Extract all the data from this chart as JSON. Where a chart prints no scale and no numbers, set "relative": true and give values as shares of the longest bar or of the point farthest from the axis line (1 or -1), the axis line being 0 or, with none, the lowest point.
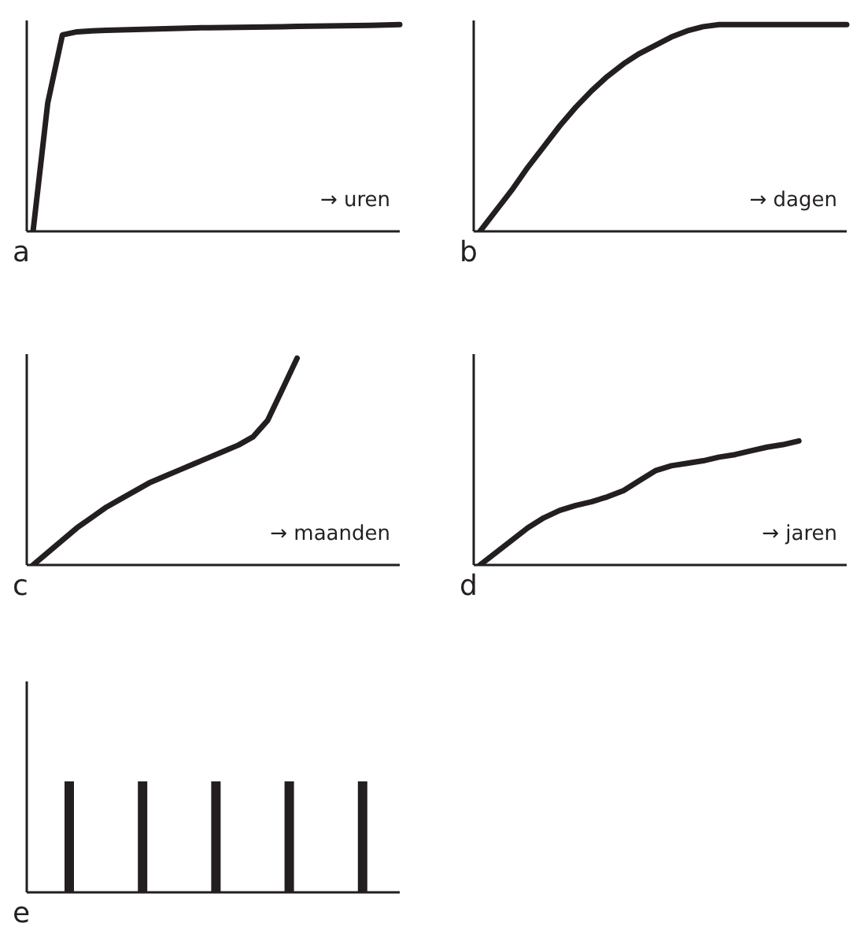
{
  "chart_data": [
    {
      "type": "line",
      "title": "a",
      "xlabel": "→ uren",
      "relative": true,
      "color": "#231f20",
      "categories": [
        null,
        null,
        null,
        null,
        null,
        null,
        null,
        null,
        null,
        null,
        null,
        null,
        null,
        null,
        null,
        null,
        null,
        null,
        null,
        null,
        null,
        null,
        null,
        null,
        null,
        null
      ],
      "values": [
        0,
        0.62,
        0.95,
        0.965,
        0.97,
        0.972,
        0.974,
        0.976,
        0.978,
        0.98,
        0.982,
        0.984,
        0.985,
        0.986,
        0.987,
        0.988,
        0.989,
        0.99,
        0.991,
        0.992,
        0.993,
        0.994,
        0.995,
        0.996,
        0.998,
        1
      ]
    },
    {
      "type": "line",
      "title": "b",
      "xlabel": "→ dagen",
      "relative": true,
      "color": "#231f20",
      "categories": [
        null,
        null,
        null,
        null,
        null,
        null,
        null,
        null,
        null,
        null,
        null,
        null,
        null,
        null,
        null,
        null,
        null,
        null,
        null,
        null,
        null,
        null,
        null,
        null
      ],
      "values": [
        0,
        0.1,
        0.2,
        0.31,
        0.41,
        0.51,
        0.6,
        0.68,
        0.75,
        0.81,
        0.86,
        0.9,
        0.94,
        0.97,
        0.99,
        1,
        1,
        1,
        1,
        1,
        1,
        1,
        1,
        1
      ]
    },
    {
      "type": "line",
      "title": "c",
      "xlabel": "→ maanden",
      "relative": true,
      "color": "#231f20",
      "categories": [
        null,
        null,
        null,
        null,
        null,
        null,
        null,
        null,
        null,
        null,
        null,
        null,
        null,
        null,
        null,
        null,
        null,
        null,
        null,
        null,
        null,
        null,
        null,
        null,
        null,
        null
      ],
      "values": [
        0,
        0.06,
        0.12,
        0.18,
        0.23,
        0.28,
        0.32,
        0.36,
        0.4,
        0.43,
        0.46,
        0.49,
        0.52,
        0.55,
        0.58,
        0.62,
        0.7,
        0.85,
        1,
        null,
        null,
        null,
        null,
        null,
        null,
        null
      ]
    },
    {
      "type": "line",
      "title": "d",
      "xlabel": "→ jaren",
      "relative": true,
      "color": "#231f20",
      "categories": [
        null,
        null,
        null,
        null,
        null,
        null,
        null,
        null,
        null,
        null,
        null,
        null,
        null,
        null,
        null,
        null,
        null,
        null,
        null,
        null,
        null,
        null,
        null,
        null
      ],
      "values": [
        0,
        0.1,
        0.2,
        0.3,
        0.38,
        0.44,
        0.48,
        0.51,
        0.55,
        0.6,
        0.68,
        0.76,
        0.8,
        0.82,
        0.84,
        0.87,
        0.89,
        0.92,
        0.95,
        0.97,
        1,
        null,
        null,
        null
      ]
    },
    {
      "type": "bar",
      "title": "e",
      "relative": true,
      "color": "#231f20",
      "categories": [
        null,
        null,
        null,
        null,
        null
      ],
      "values": [
        1,
        1,
        1,
        1,
        1
      ]
    }
  ]
}
